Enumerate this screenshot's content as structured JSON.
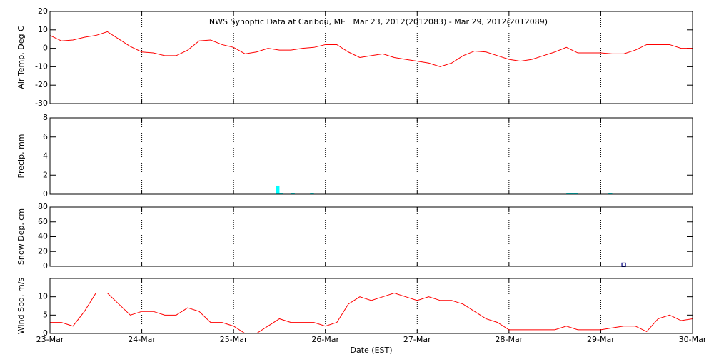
{
  "chart_data": [
    {
      "type": "line",
      "title": "NWS Synoptic Data at Caribou, ME   Mar 23, 2012(2012083) - Mar 29, 2012(2012089)",
      "ylabel": "Air Temp, Deg C",
      "ylim": [
        -30,
        20
      ],
      "yticks": [
        -30,
        -20,
        -10,
        0,
        10,
        20
      ],
      "color": "#ff0000",
      "x": [
        0,
        3,
        6,
        9,
        12,
        15,
        18,
        21,
        24,
        27,
        30,
        33,
        36,
        39,
        42,
        45,
        48,
        51,
        54,
        57,
        60,
        63,
        66,
        69,
        72,
        75,
        78,
        81,
        84,
        87,
        90,
        93,
        96,
        99,
        102,
        105,
        108,
        111,
        114,
        117,
        120,
        123,
        126,
        129,
        132,
        135,
        138,
        141,
        144,
        147,
        150,
        153,
        156,
        159,
        162,
        165,
        168
      ],
      "values": [
        7,
        4,
        4.5,
        6,
        7,
        9,
        5,
        1,
        -2,
        -2.5,
        -4,
        -4,
        -1,
        4,
        4.5,
        2,
        0.5,
        -3,
        -2,
        0,
        -1,
        -1,
        0,
        0.5,
        2,
        2,
        -2,
        -5,
        -4,
        -3,
        -5,
        -6,
        -7,
        -8,
        -10,
        -8,
        -4,
        -1.5,
        -2,
        -4,
        -6,
        -7,
        -6,
        -4,
        -2,
        0.5,
        -2.5,
        -2.5,
        -2.5,
        -3,
        -3,
        -1,
        2,
        2,
        2,
        0,
        0
      ]
    },
    {
      "type": "bar",
      "ylabel": "Precip, mm",
      "ylim": [
        0,
        8
      ],
      "yticks": [
        0,
        2,
        4,
        6,
        8
      ],
      "color": "#00ffff",
      "x": [
        59,
        60,
        63,
        68,
        135,
        136,
        137,
        146
      ],
      "values": [
        0.9,
        0.1,
        0.1,
        0.1,
        0.1,
        0.1,
        0.1,
        0.1
      ]
    },
    {
      "type": "scatter",
      "ylabel": "Snow Dep, cm",
      "ylim": [
        0,
        80
      ],
      "yticks": [
        0,
        20,
        40,
        60,
        80
      ],
      "color": "#000080",
      "x": [
        150
      ],
      "values": [
        2
      ]
    },
    {
      "type": "line",
      "ylabel": "Wind Spd, m/s",
      "xlabel": "Date (EST)",
      "ylim": [
        0,
        15
      ],
      "yticks": [
        0,
        5,
        10
      ],
      "color": "#ff0000",
      "xlim": [
        0,
        168
      ],
      "xticks": [
        {
          "value": 0,
          "label": "23-Mar"
        },
        {
          "value": 24,
          "label": "24-Mar"
        },
        {
          "value": 48,
          "label": "25-Mar"
        },
        {
          "value": 72,
          "label": "26-Mar"
        },
        {
          "value": 96,
          "label": "27-Mar"
        },
        {
          "value": 120,
          "label": "28-Mar"
        },
        {
          "value": 144,
          "label": "29-Mar"
        },
        {
          "value": 168,
          "label": "30-Mar"
        }
      ],
      "x": [
        0,
        3,
        6,
        9,
        12,
        15,
        18,
        21,
        24,
        27,
        30,
        33,
        36,
        39,
        42,
        45,
        48,
        51,
        54,
        57,
        60,
        63,
        66,
        69,
        72,
        75,
        78,
        81,
        84,
        87,
        90,
        93,
        96,
        99,
        102,
        105,
        108,
        111,
        114,
        117,
        120,
        123,
        126,
        129,
        132,
        135,
        138,
        141,
        144,
        147,
        150,
        153,
        156,
        159,
        162,
        165,
        168
      ],
      "values": [
        3,
        3,
        2,
        6,
        11,
        11,
        8,
        5,
        6,
        6,
        5,
        5,
        7,
        6,
        3,
        3,
        2,
        0,
        0,
        2,
        4,
        3,
        3,
        3,
        2,
        3,
        8,
        10,
        9,
        10,
        11,
        10,
        9,
        10,
        9,
        9,
        8,
        6,
        4,
        3,
        1,
        1,
        1,
        1,
        1,
        2,
        1,
        1,
        1,
        1.5,
        2,
        2,
        0.5,
        4,
        5,
        3.5,
        4
      ]
    }
  ]
}
